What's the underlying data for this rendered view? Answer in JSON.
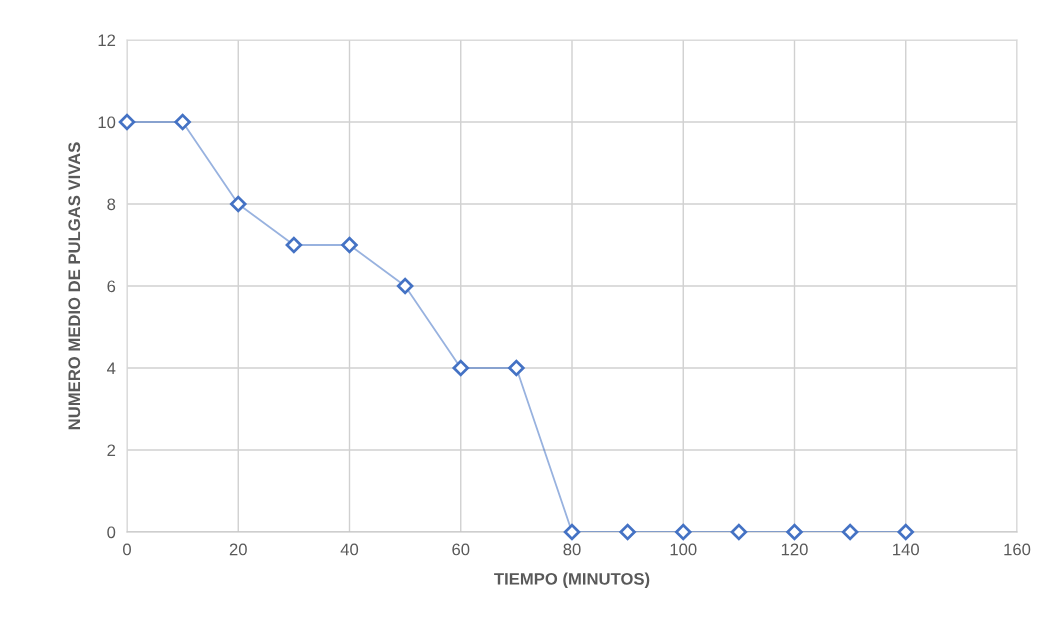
{
  "chart_data": {
    "type": "line",
    "xlabel": "TIEMPO (MINUTOS)",
    "ylabel": "NUMERO MEDIO DE PULGAS VIVAS",
    "x": [
      0,
      10,
      20,
      30,
      40,
      50,
      60,
      70,
      80,
      90,
      100,
      110,
      120,
      130,
      140
    ],
    "series": [
      {
        "color": "#4472c4",
        "values": [
          10,
          10,
          8,
          7,
          7,
          6,
          4,
          4,
          0,
          0,
          0,
          0,
          0,
          0,
          0
        ]
      }
    ],
    "xlim": [
      0,
      160
    ],
    "xticks": [
      0,
      20,
      40,
      60,
      80,
      100,
      120,
      140,
      160
    ],
    "ylim": [
      0,
      12
    ],
    "yticks": [
      0,
      2,
      4,
      6,
      8,
      10,
      12
    ],
    "grid": true,
    "marker": "diamond",
    "line_style": "solid",
    "legend": false
  }
}
